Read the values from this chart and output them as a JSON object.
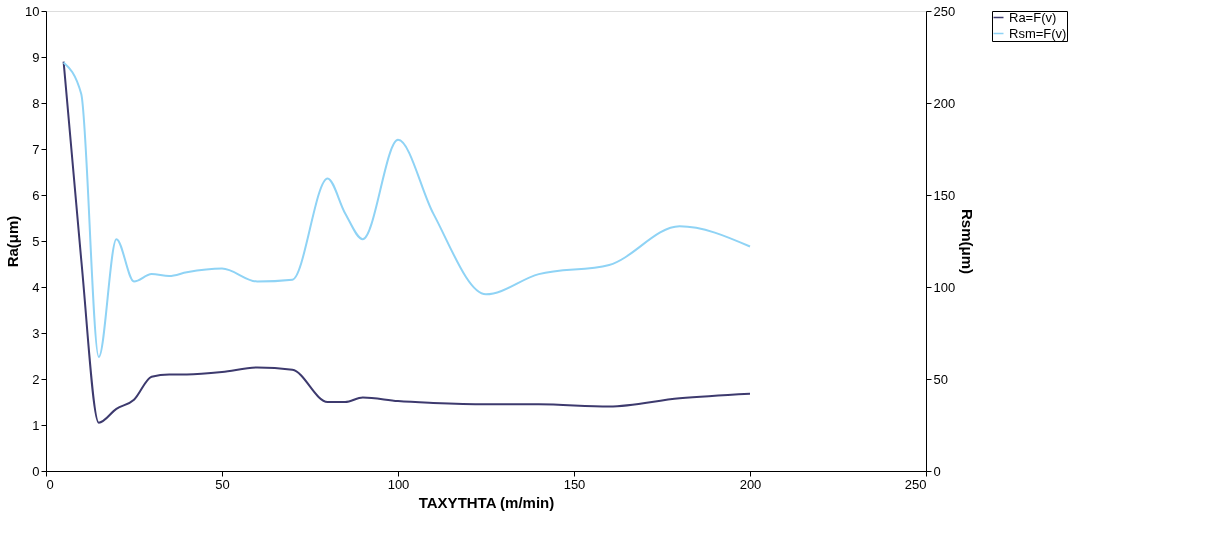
{
  "chart_data": {
    "type": "line",
    "xlabel": "TAXYTHTA (m/min)",
    "ylabel": "Ra(μm)",
    "y2label": "Rsm(μm)",
    "x": [
      5,
      10,
      15,
      20,
      25,
      30,
      35,
      40,
      50,
      60,
      70,
      80,
      85,
      90,
      100,
      110,
      125,
      140,
      160,
      180,
      200
    ],
    "series": [
      {
        "name": "Ra=F(v)",
        "color": "#3d3a6e",
        "values": [
          8.9,
          4.6,
          1.05,
          1.35,
          1.55,
          2.05,
          2.1,
          2.1,
          2.15,
          2.25,
          2.2,
          1.5,
          1.5,
          1.6,
          1.52,
          1.48,
          1.45,
          1.45,
          1.4,
          1.58,
          1.68
        ]
      },
      {
        "name": "Rsm=F(v)",
        "color": "#8fd3f5",
        "axis": "y2",
        "values": [
          222,
          205,
          62,
          126,
          103,
          107,
          106,
          108,
          110,
          103,
          104,
          159,
          140,
          126,
          180,
          140,
          96,
          107,
          112,
          133,
          122
        ]
      }
    ],
    "xlim": [
      0,
      250
    ],
    "xticks": [
      0,
      50,
      100,
      150,
      200,
      250
    ],
    "ylim": [
      0,
      10
    ],
    "yticks": [
      0,
      1,
      2,
      3,
      4,
      5,
      6,
      7,
      8,
      9,
      10
    ],
    "y2lim": [
      0,
      250
    ],
    "y2ticks": [
      0,
      50,
      100,
      150,
      200,
      250
    ],
    "legend": "right",
    "grid": false
  }
}
